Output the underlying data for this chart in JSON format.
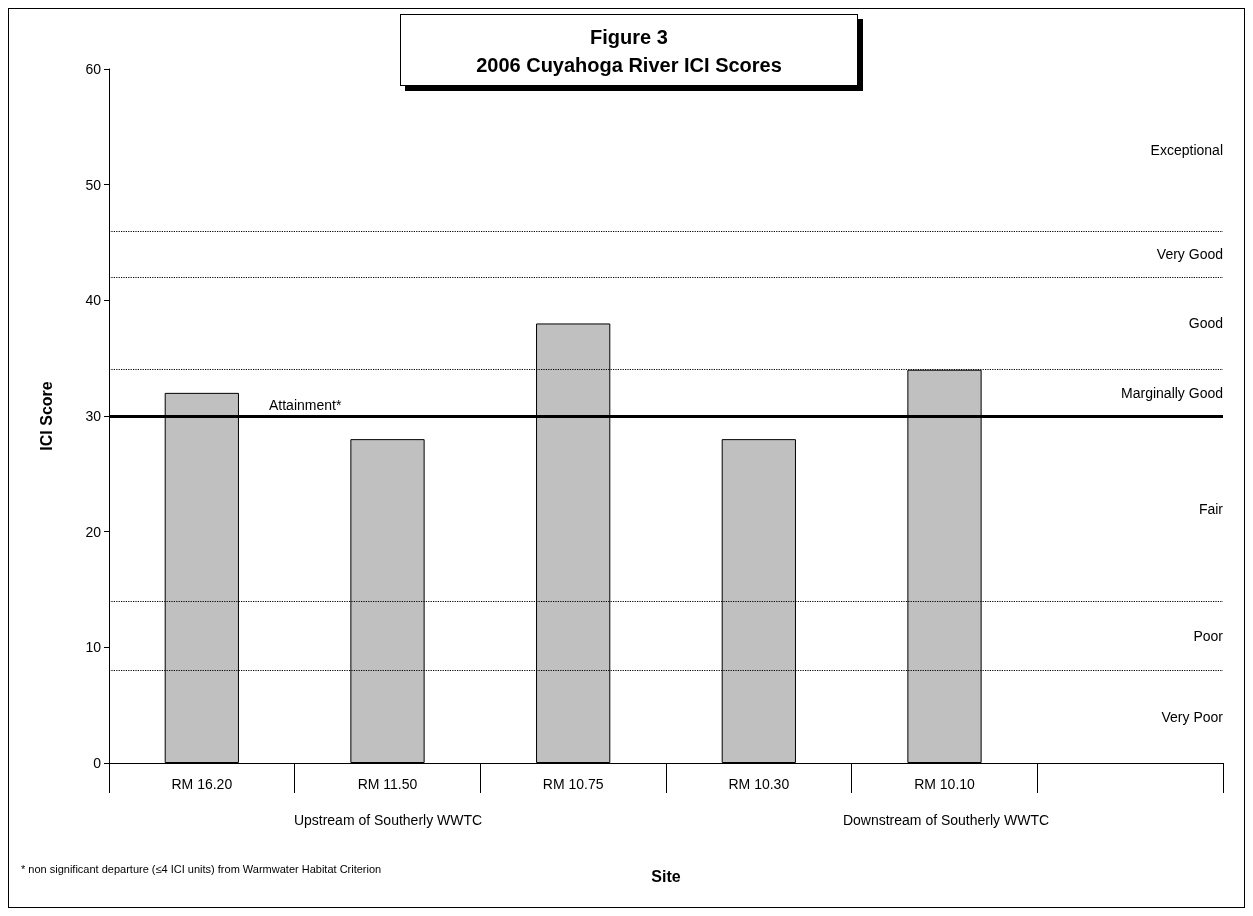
{
  "chart_data": {
    "type": "bar",
    "title": "Figure 3",
    "subtitle": "2006 Cuyahoga River ICI Scores",
    "xlabel": "Site",
    "ylabel": "ICI Score",
    "categories": [
      "RM 16.20",
      "RM 11.50",
      "RM 10.75",
      "RM 10.30",
      "RM 10.10",
      null
    ],
    "values": [
      32,
      28,
      38,
      28,
      34,
      null
    ],
    "color": "#c0c0c0",
    "ylim": [
      0,
      60
    ],
    "yticks": [
      0,
      10,
      20,
      30,
      40,
      50,
      60
    ],
    "grid": false,
    "ref_lines": [
      {
        "axis": "y",
        "value": 30,
        "label": "Attainment*",
        "line_style": "solid",
        "color": "#000000"
      },
      {
        "axis": "y",
        "value": 8,
        "line_style": "dotted",
        "color": "#000000"
      },
      {
        "axis": "y",
        "value": 14,
        "line_style": "dotted",
        "color": "#000000"
      },
      {
        "axis": "y",
        "value": 34,
        "line_style": "dotted",
        "color": "#000000"
      },
      {
        "axis": "y",
        "value": 42,
        "line_style": "dotted",
        "color": "#000000"
      },
      {
        "axis": "y",
        "value": 46,
        "line_style": "dotted",
        "color": "#000000"
      }
    ],
    "annotations": [
      "Exceptional",
      "Very Good",
      "Good",
      "Marginally Good",
      "Fair",
      "Poor",
      "Very Poor",
      "Upstream of Southerly WWTC",
      "Downstream of Southerly WWTC",
      "* non significant departure (≤4 ICI units) from Warmwater Habitat Criterion"
    ]
  }
}
